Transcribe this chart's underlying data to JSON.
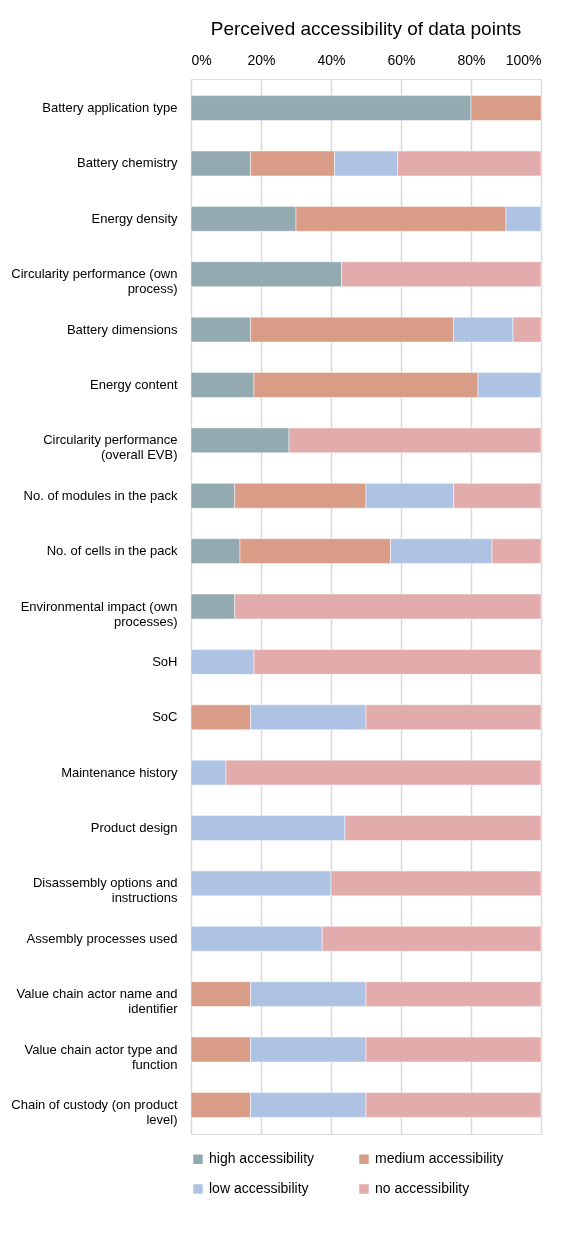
{
  "chart_data": {
    "type": "bar",
    "orientation": "horizontal",
    "stacked": true,
    "title": "Perceived accessibility of data points",
    "categories": [
      "Battery application type",
      "Battery chemistry",
      "Energy density",
      "Circularity performance (own process)",
      "Battery dimensions",
      "Energy content",
      "Circularity performance (overall EVB)",
      "No. of modules in the pack",
      "No. of cells in the pack",
      "Environmental impact (own processes)",
      "SoH",
      "SoC",
      "Maintenance history",
      "Product design",
      "Disassembly options and instructions",
      "Assembly processes used",
      "Value chain actor name and identifier",
      "Value chain actor type and function",
      "Chain of custody (on product level)"
    ],
    "series": [
      {
        "name": "high accessibility",
        "color": "#93aab0",
        "values": [
          80,
          17,
          30,
          43,
          17,
          18,
          28,
          12.5,
          14,
          12.5,
          null,
          null,
          null,
          null,
          null,
          null,
          null,
          null,
          null
        ]
      },
      {
        "name": "medium accessibility",
        "color": "#d99c86",
        "values": [
          20,
          24,
          60,
          null,
          58,
          64,
          null,
          37.5,
          43,
          null,
          null,
          17,
          null,
          null,
          null,
          null,
          17,
          17,
          17
        ]
      },
      {
        "name": "low accessibility",
        "color": "#aec3e4",
        "values": [
          null,
          18,
          10,
          null,
          17,
          18,
          null,
          25,
          29,
          null,
          18,
          33,
          10,
          44,
          40,
          37.5,
          33,
          33,
          33
        ]
      },
      {
        "name": "no accessibility",
        "color": "#e3acac",
        "values": [
          null,
          41,
          null,
          57,
          8,
          null,
          72,
          25,
          14,
          87.5,
          82,
          50,
          90,
          56,
          60,
          62.5,
          50,
          50,
          50
        ]
      }
    ],
    "xlim": [
      0,
      100
    ],
    "xticks": [
      {
        "value": 0,
        "label": "0%"
      },
      {
        "value": 20,
        "label": "20%"
      },
      {
        "value": 40,
        "label": "40%"
      },
      {
        "value": 60,
        "label": "60%"
      },
      {
        "value": 80,
        "label": "80%"
      },
      {
        "value": 100,
        "label": "100%"
      }
    ],
    "grid": "x",
    "legend": "bottom"
  }
}
